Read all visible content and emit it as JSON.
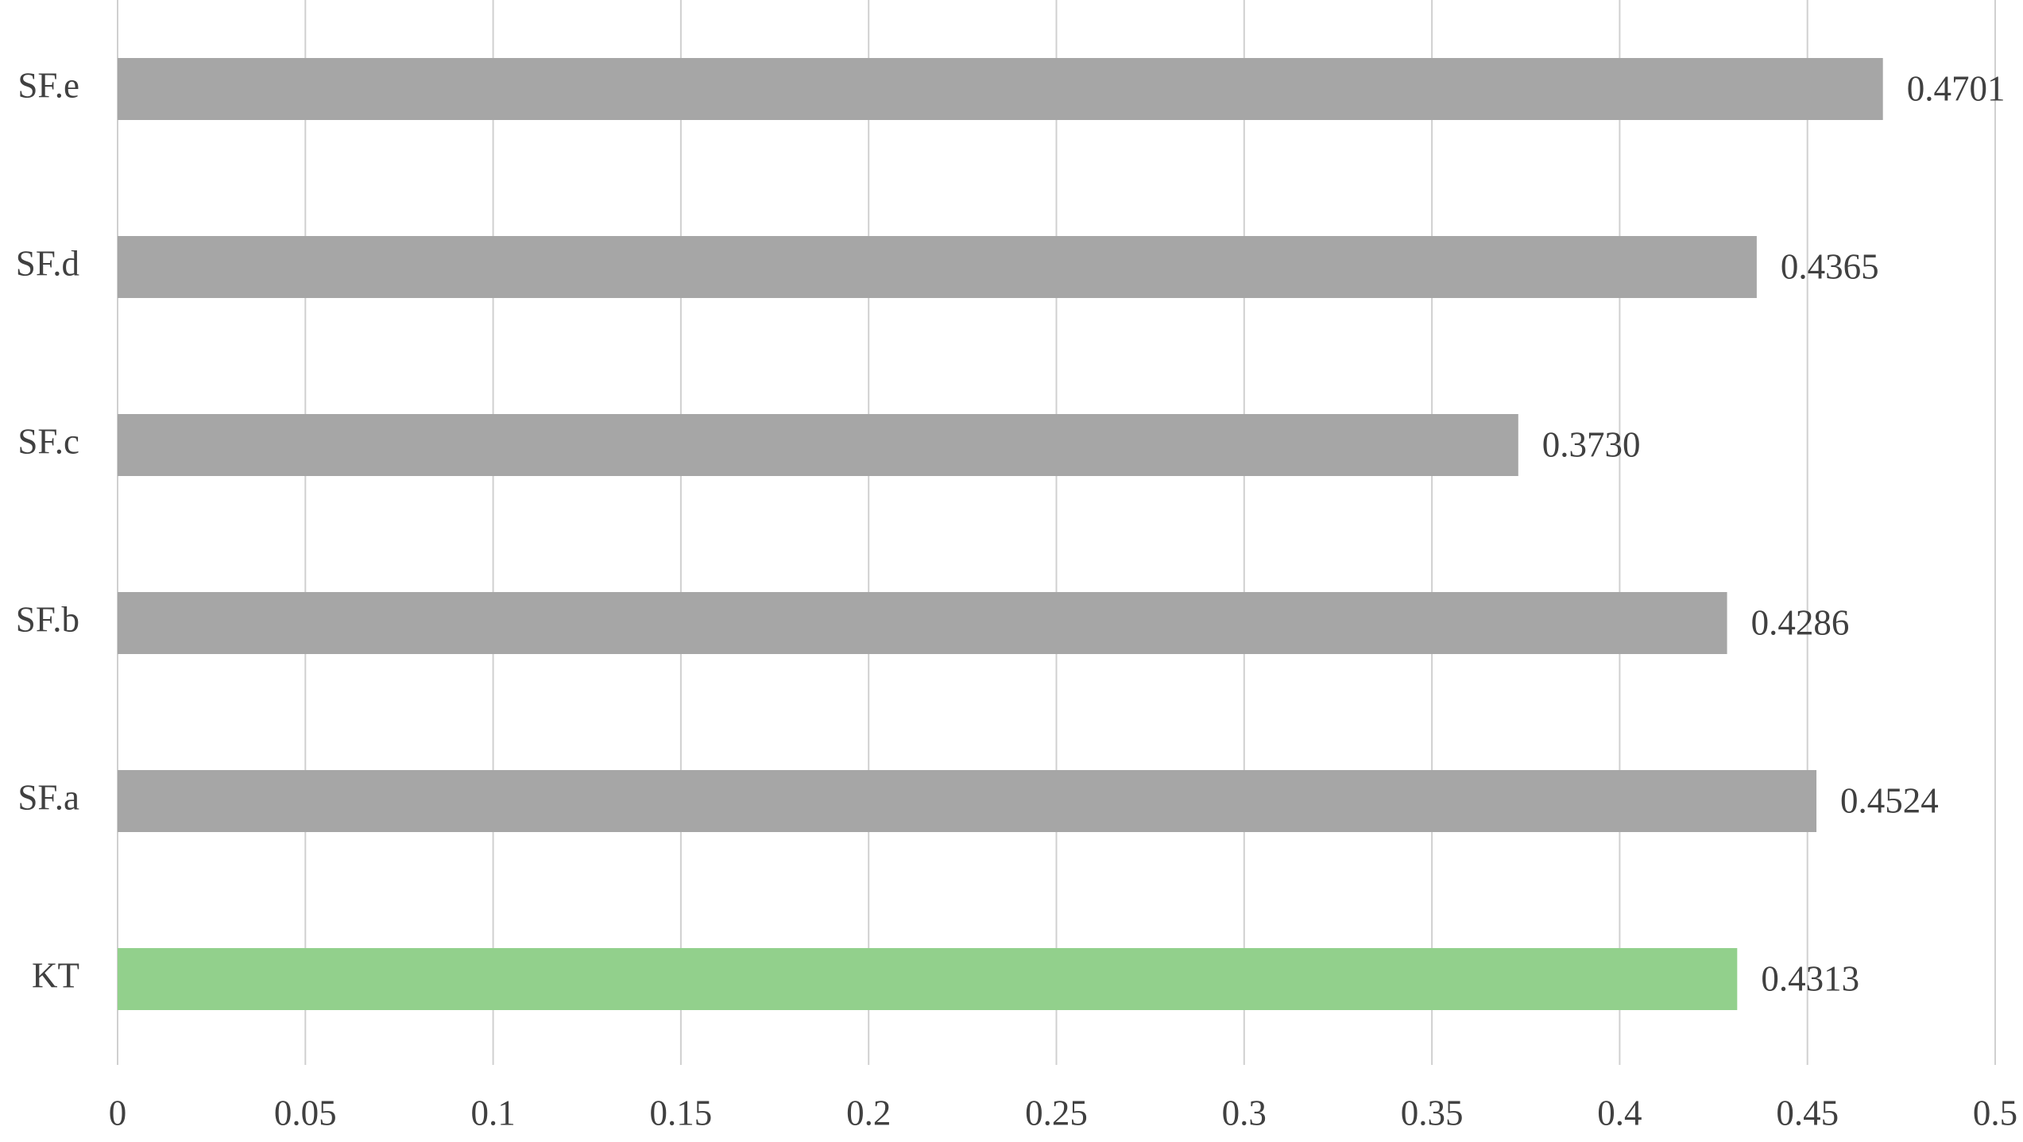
{
  "chart_data": {
    "type": "barh",
    "categories": [
      "SF.e",
      "SF.d",
      "SF.c",
      "SF.b",
      "SF.a",
      "KT"
    ],
    "values": [
      0.4701,
      0.4365,
      0.373,
      0.4286,
      0.4524,
      0.4313
    ],
    "value_labels": [
      "0.4701",
      "0.4365",
      "0.3730",
      "0.4286",
      "0.4524",
      "0.4313"
    ],
    "colors": [
      "#a6a6a6",
      "#a6a6a6",
      "#a6a6a6",
      "#a6a6a6",
      "#a6a6a6",
      "#92d08c"
    ],
    "xlim": [
      0,
      0.5
    ],
    "xticks": [
      0,
      0.05,
      0.1,
      0.15,
      0.2,
      0.25,
      0.3,
      0.35,
      0.4,
      0.45,
      0.5
    ],
    "grid": true
  }
}
